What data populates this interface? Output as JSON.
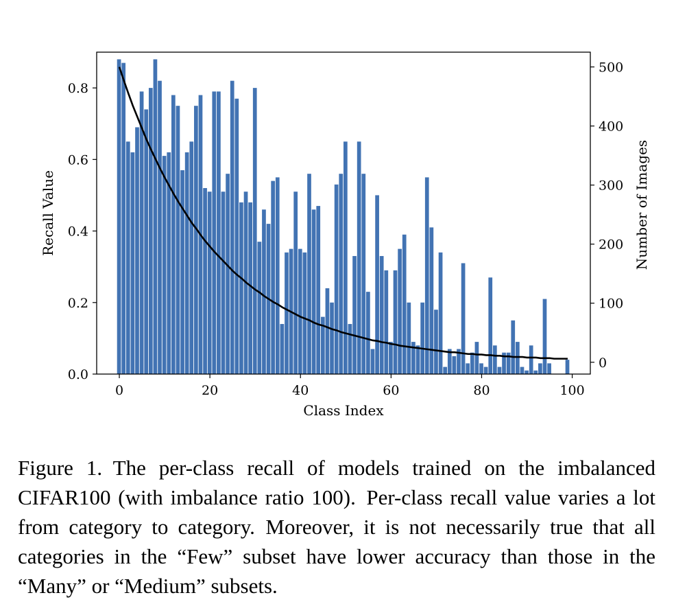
{
  "chart_data": {
    "type": "bar",
    "xlabel": "Class Index",
    "ylabel": "Recall Value",
    "y2label": "Number of Images",
    "xlim": [
      -5,
      104
    ],
    "ylim": [
      0,
      0.9
    ],
    "y2lim": [
      -20,
      525
    ],
    "x_ticks": [
      0,
      20,
      40,
      60,
      80,
      100
    ],
    "y_ticks": [
      0.0,
      0.2,
      0.4,
      0.6,
      0.8
    ],
    "y2_ticks": [
      0,
      100,
      200,
      300,
      400,
      500
    ],
    "x_tick_labels": [
      "0",
      "20",
      "40",
      "60",
      "80",
      "100"
    ],
    "y_tick_labels": [
      "0.0",
      "0.2",
      "0.4",
      "0.6",
      "0.8"
    ],
    "y2_tick_labels": [
      "0",
      "100",
      "200",
      "300",
      "400",
      "500"
    ],
    "bar_color": "#4273b3",
    "line_color": "#000000",
    "grid": false,
    "x": [
      0,
      1,
      2,
      3,
      4,
      5,
      6,
      7,
      8,
      9,
      10,
      11,
      12,
      13,
      14,
      15,
      16,
      17,
      18,
      19,
      20,
      21,
      22,
      23,
      24,
      25,
      26,
      27,
      28,
      29,
      30,
      31,
      32,
      33,
      34,
      35,
      36,
      37,
      38,
      39,
      40,
      41,
      42,
      43,
      44,
      45,
      46,
      47,
      48,
      49,
      50,
      51,
      52,
      53,
      54,
      55,
      56,
      57,
      58,
      59,
      60,
      61,
      62,
      63,
      64,
      65,
      66,
      67,
      68,
      69,
      70,
      71,
      72,
      73,
      74,
      75,
      76,
      77,
      78,
      79,
      80,
      81,
      82,
      83,
      84,
      85,
      86,
      87,
      88,
      89,
      90,
      91,
      92,
      93,
      94,
      95,
      96,
      97,
      98,
      99
    ],
    "series": [
      {
        "axis": "left",
        "kind": "bar",
        "values": [
          0.88,
          0.87,
          0.65,
          0.62,
          0.69,
          0.79,
          0.74,
          0.8,
          0.88,
          0.82,
          0.61,
          0.62,
          0.78,
          0.75,
          0.57,
          0.62,
          0.65,
          0.75,
          0.78,
          0.52,
          0.51,
          0.79,
          0.79,
          0.51,
          0.56,
          0.82,
          0.77,
          0.48,
          0.51,
          0.48,
          0.8,
          0.37,
          0.46,
          0.42,
          0.54,
          0.55,
          0.14,
          0.34,
          0.35,
          0.51,
          0.35,
          0.34,
          0.56,
          0.46,
          0.47,
          0.16,
          0.24,
          0.2,
          0.53,
          0.56,
          0.65,
          0.14,
          0.33,
          0.65,
          0.56,
          0.23,
          0.07,
          0.5,
          0.33,
          0.29,
          0.09,
          0.29,
          0.35,
          0.39,
          0.2,
          0.09,
          0.08,
          0.2,
          0.55,
          0.41,
          0.18,
          0.34,
          0.02,
          0.07,
          0.05,
          0.07,
          0.31,
          0.03,
          0.06,
          0.09,
          0.03,
          0.02,
          0.27,
          0.08,
          0.02,
          0.06,
          0.06,
          0.15,
          0.09,
          0.02,
          0.01,
          0.08,
          0.01,
          0.03,
          0.21,
          0.03,
          0.0,
          0.0,
          0.0,
          0.04
        ]
      },
      {
        "axis": "right",
        "kind": "line",
        "values": [
          500,
          477,
          455,
          434,
          415,
          396,
          377,
          360,
          344,
          328,
          313,
          299,
          285,
          272,
          260,
          248,
          236,
          226,
          215,
          205,
          196,
          187,
          179,
          171,
          163,
          155,
          148,
          142,
          135,
          129,
          123,
          118,
          112,
          107,
          102,
          98,
          93,
          89,
          85,
          81,
          77,
          74,
          71,
          67,
          64,
          62,
          59,
          56,
          54,
          51,
          49,
          47,
          45,
          43,
          41,
          39,
          37,
          36,
          34,
          33,
          31,
          30,
          28,
          27,
          26,
          25,
          24,
          23,
          22,
          21,
          20,
          19,
          18,
          17,
          17,
          16,
          15,
          14,
          14,
          13,
          13,
          12,
          12,
          11,
          11,
          10,
          10,
          9,
          9,
          9,
          8,
          8,
          8,
          7,
          7,
          7,
          6,
          6,
          6,
          6
        ]
      }
    ]
  },
  "caption": "Figure 1. The per-class recall of models trained on the imbalanced CIFAR100 (with imbalance ratio 100). Per-class recall value varies a lot from category to category. Moreover, it is not necessarily true that all categories in the “Few” subset have lower accuracy than those in the “Many” or “Medium” subsets."
}
